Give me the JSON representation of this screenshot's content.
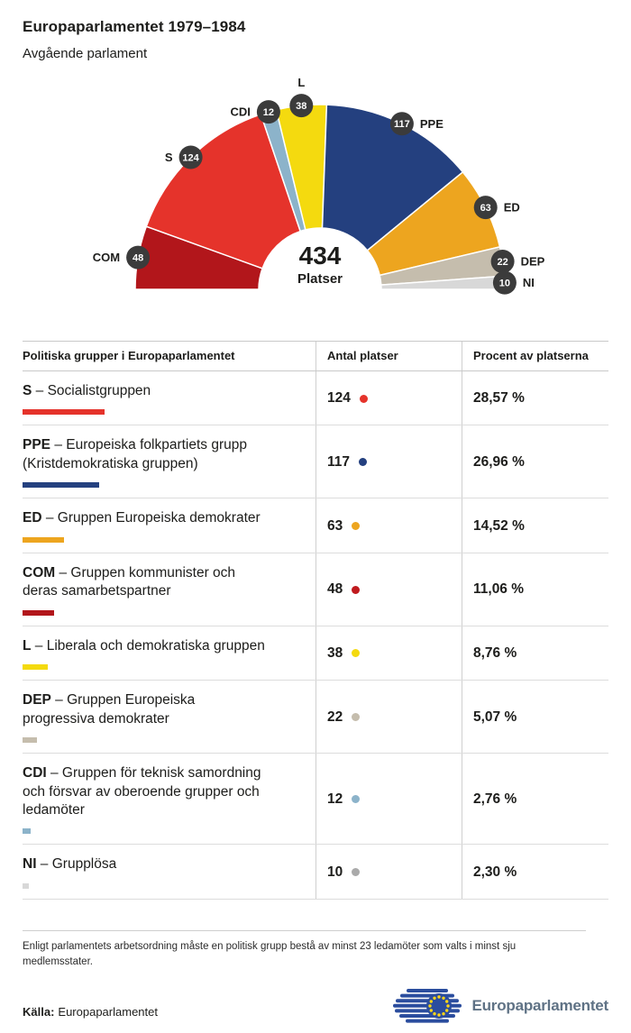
{
  "title": "Europaparlamentet 1979–1984",
  "subtitle": "Avgående parlament",
  "chart_data": {
    "type": "pie",
    "variant": "hemicycle_half_donut",
    "title": "Avgående parlament",
    "center_total": "434",
    "center_label": "Platser",
    "arc_order_left_to_right": [
      "COM",
      "S",
      "CDI",
      "L",
      "PPE",
      "ED",
      "DEP",
      "NI"
    ],
    "categories": [
      "S",
      "PPE",
      "ED",
      "COM",
      "L",
      "DEP",
      "CDI",
      "NI"
    ],
    "values": [
      124,
      117,
      63,
      48,
      38,
      22,
      12,
      10
    ],
    "total_seats": 434,
    "badge_color": "#3b3b3b",
    "legend_position": "around-arc"
  },
  "groups": [
    {
      "abbr": "S",
      "name": "– Socialistgruppen",
      "seats": 124,
      "percent": "28,57 %",
      "color": "#e5332b",
      "dot_color": "#e5332b"
    },
    {
      "abbr": "PPE",
      "name": "– Europeiska folkpartiets grupp\n(Kristdemokratiska gruppen)",
      "seats": 117,
      "percent": "26,96 %",
      "color": "#24407f",
      "dot_color": "#24407f"
    },
    {
      "abbr": "ED",
      "name": "– Gruppen Europeiska demokrater",
      "seats": 63,
      "percent": "14,52 %",
      "color": "#eda51f",
      "dot_color": "#eda51f"
    },
    {
      "abbr": "COM",
      "name": "– Gruppen kommunister och\nderas samarbetspartner",
      "seats": 48,
      "percent": "11,06 %",
      "color": "#b2161b",
      "dot_color": "#c01a1e"
    },
    {
      "abbr": "L",
      "name": "– Liberala och demokratiska gruppen",
      "seats": 38,
      "percent": "8,76 %",
      "color": "#f4da0f",
      "dot_color": "#f4da0f"
    },
    {
      "abbr": "DEP",
      "name": "– Gruppen Europeiska\nprogressiva demokrater",
      "seats": 22,
      "percent": "5,07 %",
      "color": "#c5bdad",
      "dot_color": "#c5bdad"
    },
    {
      "abbr": "CDI",
      "name": "– Gruppen för teknisk samordning\noch försvar av oberoende grupper och\nledamöter",
      "seats": 12,
      "percent": "2,76 %",
      "color": "#8cb3ca",
      "dot_color": "#8cb3ca"
    },
    {
      "abbr": "NI",
      "name": "– Grupplösa",
      "seats": 10,
      "percent": "2,30 %",
      "color": "#d8d8d8",
      "dot_color": "#aaaaaa"
    }
  ],
  "table": {
    "headers": [
      "Politiska grupper i Europaparlamentet",
      "Antal platser",
      "Procent av platserna"
    ]
  },
  "footnote": "Enligt parlamentets arbetsordning måste en politisk grupp bestå av minst 23 ledamöter som valts i minst sju medlemsstater.",
  "source_label": "Källa:",
  "source": "Europaparlamentet",
  "logo_text": "Europaparlamentet",
  "logo_colors": {
    "blue": "#2b4d9e",
    "star_yellow": "#ffd617"
  }
}
